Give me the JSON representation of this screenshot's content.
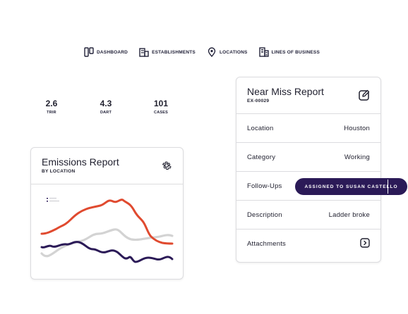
{
  "nav": {
    "items": [
      {
        "label": "DASHBOARD",
        "icon": "dashboard-icon"
      },
      {
        "label": "ESTABLISHMENTS",
        "icon": "building-icon"
      },
      {
        "label": "LOCATIONS",
        "icon": "location-pin-icon"
      },
      {
        "label": "LINES OF BUSINESS",
        "icon": "business-lines-icon"
      }
    ]
  },
  "metrics": [
    {
      "value": "2.6",
      "label": "TRIR"
    },
    {
      "value": "4.3",
      "label": "DART"
    },
    {
      "value": "101",
      "label": "CASES"
    }
  ],
  "emissions": {
    "title": "Emissions Report",
    "subtitle": "BY LOCATION"
  },
  "near_miss": {
    "title": "Near Miss Report",
    "id": "EX-00029",
    "rows": [
      {
        "key": "Location",
        "value": "Houston"
      },
      {
        "key": "Category",
        "value": "Working"
      },
      {
        "key": "Follow-Ups",
        "value": ""
      },
      {
        "key": "Description",
        "value": "Ladder broke"
      },
      {
        "key": "Attachments",
        "value": ""
      }
    ]
  },
  "assignment": {
    "label": "ASSIGNED TO SUSAN CASTELLO"
  },
  "colors": {
    "accent": "#2b1a57",
    "red_series": "#e04a2f",
    "grey_series": "#d3d3d3",
    "purple_series": "#2b1a57",
    "border": "#dcdcdf"
  }
}
